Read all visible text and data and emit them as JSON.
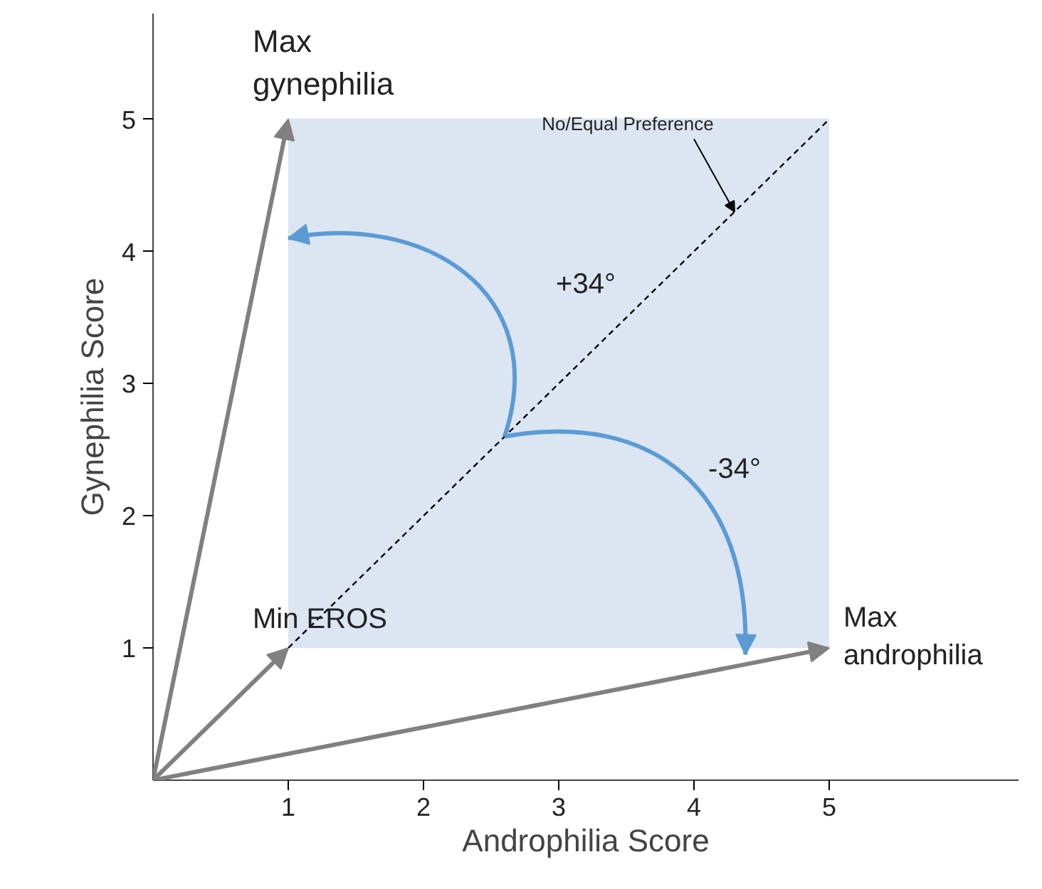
{
  "chart_data": {
    "type": "line",
    "xlabel": "Androphilia Score",
    "ylabel": "Gynephilia Score",
    "xlim": [
      0,
      6.4
    ],
    "ylim": [
      0,
      5.8
    ],
    "xticks": [
      1,
      2,
      3,
      4,
      5
    ],
    "yticks": [
      1,
      2,
      3,
      4,
      5
    ],
    "grid": false,
    "series": [
      {
        "color": "#dce6f2",
        "x": [
          1,
          5
        ],
        "values": [
          5,
          5
        ],
        "lower": [
          1,
          1
        ],
        "upper": [
          5,
          5
        ]
      },
      {
        "color": "#000000",
        "line_style": "dashed",
        "x": [
          0,
          5
        ],
        "values": [
          0,
          5
        ]
      }
    ],
    "annotations": [
      {
        "text": "Max\ngynephilia",
        "x": 1,
        "y": 5
      },
      {
        "text": "Max\nandrophilia",
        "x": 5,
        "y": 1
      },
      {
        "text": "Min EROS",
        "x": 1,
        "y": 1
      },
      "+34°",
      "-34°",
      {
        "text": "No/Equal Preference",
        "x": 4.3,
        "y": 4.3
      }
    ]
  }
}
